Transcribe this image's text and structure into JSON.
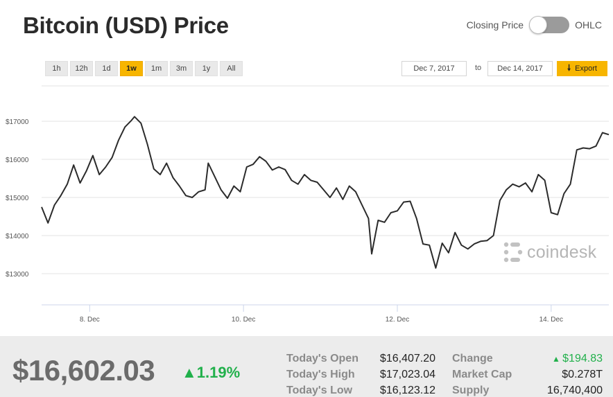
{
  "header": {
    "title": "Bitcoin (USD) Price",
    "toggle_left_label": "Closing Price",
    "toggle_right_label": "OHLC"
  },
  "ranges": [
    "1h",
    "12h",
    "1d",
    "1w",
    "1m",
    "3m",
    "1y",
    "All"
  ],
  "active_range": "1w",
  "dates": {
    "from": "Dec 7, 2017",
    "separator": "to",
    "to": "Dec 14, 2017"
  },
  "export_label": "Export",
  "watermark": "coindesk",
  "colors": {
    "accent": "#f7b500",
    "line": "#2b2b2b",
    "positive": "#21b04b"
  },
  "chart_data": {
    "type": "line",
    "ylim": [
      12000,
      18000
    ],
    "xlim": [
      "Dec 7, 2017 09:00",
      "Dec 14, 2017 18:00"
    ],
    "yticks": [
      13000,
      14000,
      15000,
      16000,
      17000
    ],
    "ytick_labels": [
      "$13000",
      "$14000",
      "$15000",
      "$16000",
      "$17000"
    ],
    "xtick_labels": [
      "8. Dec",
      "10. Dec",
      "12. Dec",
      "14. Dec"
    ],
    "grid": true,
    "series": [
      {
        "values": [
          [
            "Dec 7, 2017 09:00",
            14750
          ],
          [
            "Dec 7, 2017 11:00",
            14330
          ],
          [
            "Dec 7, 2017 13:00",
            14800
          ],
          [
            "Dec 7, 2017 15:00",
            15050
          ],
          [
            "Dec 7, 2017 17:00",
            15350
          ],
          [
            "Dec 7, 2017 19:00",
            15850
          ],
          [
            "Dec 7, 2017 21:00",
            15380
          ],
          [
            "Dec 7, 2017 23:00",
            15700
          ],
          [
            "Dec 8, 2017 01:00",
            16100
          ],
          [
            "Dec 8, 2017 03:00",
            15600
          ],
          [
            "Dec 8, 2017 05:00",
            15800
          ],
          [
            "Dec 8, 2017 07:00",
            16050
          ],
          [
            "Dec 8, 2017 09:00",
            16500
          ],
          [
            "Dec 8, 2017 11:00",
            16850
          ],
          [
            "Dec 8, 2017 13:00",
            17020
          ],
          [
            "Dec 8, 2017 14:00",
            17120
          ],
          [
            "Dec 8, 2017 16:00",
            16950
          ],
          [
            "Dec 8, 2017 18:00",
            16400
          ],
          [
            "Dec 8, 2017 20:00",
            15750
          ],
          [
            "Dec 8, 2017 22:00",
            15600
          ],
          [
            "Dec 9, 2017 00:00",
            15900
          ],
          [
            "Dec 9, 2017 02:00",
            15520
          ],
          [
            "Dec 9, 2017 04:00",
            15300
          ],
          [
            "Dec 9, 2017 06:00",
            15050
          ],
          [
            "Dec 9, 2017 08:00",
            15000
          ],
          [
            "Dec 9, 2017 10:00",
            15150
          ],
          [
            "Dec 9, 2017 12:00",
            15200
          ],
          [
            "Dec 9, 2017 13:00",
            15900
          ],
          [
            "Dec 9, 2017 15:00",
            15550
          ],
          [
            "Dec 9, 2017 17:00",
            15200
          ],
          [
            "Dec 9, 2017 19:00",
            14980
          ],
          [
            "Dec 9, 2017 21:00",
            15300
          ],
          [
            "Dec 9, 2017 23:00",
            15150
          ],
          [
            "Dec 10, 2017 01:00",
            15800
          ],
          [
            "Dec 10, 2017 03:00",
            15870
          ],
          [
            "Dec 10, 2017 05:00",
            16070
          ],
          [
            "Dec 10, 2017 07:00",
            15950
          ],
          [
            "Dec 10, 2017 09:00",
            15720
          ],
          [
            "Dec 10, 2017 11:00",
            15800
          ],
          [
            "Dec 10, 2017 13:00",
            15730
          ],
          [
            "Dec 10, 2017 15:00",
            15450
          ],
          [
            "Dec 10, 2017 17:00",
            15350
          ],
          [
            "Dec 10, 2017 19:00",
            15600
          ],
          [
            "Dec 10, 2017 21:00",
            15450
          ],
          [
            "Dec 10, 2017 23:00",
            15400
          ],
          [
            "Dec 11, 2017 01:00",
            15200
          ],
          [
            "Dec 11, 2017 03:00",
            15000
          ],
          [
            "Dec 11, 2017 05:00",
            15250
          ],
          [
            "Dec 11, 2017 07:00",
            14950
          ],
          [
            "Dec 11, 2017 09:00",
            15300
          ],
          [
            "Dec 11, 2017 11:00",
            15150
          ],
          [
            "Dec 11, 2017 13:00",
            14800
          ],
          [
            "Dec 11, 2017 15:00",
            14450
          ],
          [
            "Dec 11, 2017 16:00",
            13520
          ],
          [
            "Dec 11, 2017 18:00",
            14400
          ],
          [
            "Dec 11, 2017 20:00",
            14350
          ],
          [
            "Dec 11, 2017 22:00",
            14600
          ],
          [
            "Dec 12, 2017 00:00",
            14650
          ],
          [
            "Dec 12, 2017 02:00",
            14880
          ],
          [
            "Dec 12, 2017 04:00",
            14900
          ],
          [
            "Dec 12, 2017 06:00",
            14450
          ],
          [
            "Dec 12, 2017 08:00",
            13780
          ],
          [
            "Dec 12, 2017 10:00",
            13750
          ],
          [
            "Dec 12, 2017 12:00",
            13150
          ],
          [
            "Dec 12, 2017 14:00",
            13800
          ],
          [
            "Dec 12, 2017 16:00",
            13550
          ],
          [
            "Dec 12, 2017 18:00",
            14080
          ],
          [
            "Dec 12, 2017 20:00",
            13750
          ],
          [
            "Dec 12, 2017 22:00",
            13650
          ],
          [
            "Dec 13, 2017 00:00",
            13780
          ],
          [
            "Dec 13, 2017 02:00",
            13850
          ],
          [
            "Dec 13, 2017 04:00",
            13870
          ],
          [
            "Dec 13, 2017 06:00",
            14000
          ],
          [
            "Dec 13, 2017 08:00",
            14920
          ],
          [
            "Dec 13, 2017 10:00",
            15200
          ],
          [
            "Dec 13, 2017 12:00",
            15350
          ],
          [
            "Dec 13, 2017 14:00",
            15280
          ],
          [
            "Dec 13, 2017 16:00",
            15380
          ],
          [
            "Dec 13, 2017 18:00",
            15150
          ],
          [
            "Dec 13, 2017 20:00",
            15600
          ],
          [
            "Dec 13, 2017 22:00",
            15450
          ],
          [
            "Dec 14, 2017 00:00",
            14600
          ],
          [
            "Dec 14, 2017 02:00",
            14550
          ],
          [
            "Dec 14, 2017 04:00",
            15100
          ]
        ],
        "values_continued": [
          [
            "Dec 14, 2017 06:00",
            15350
          ],
          [
            "Dec 14, 2017 08:00",
            16250
          ],
          [
            "Dec 14, 2017 10:00",
            16300
          ],
          [
            "Dec 14, 2017 12:00",
            16280
          ],
          [
            "Dec 14, 2017 14:00",
            16350
          ],
          [
            "Dec 14, 2017 16:00",
            16700
          ],
          [
            "Dec 14, 2017 18:00",
            16650
          ]
        ]
      }
    ]
  },
  "stats": {
    "price": "$16,602.03",
    "pct_change": "1.19%",
    "labels": {
      "open": "Today's Open",
      "high": "Today's High",
      "low": "Today's Low",
      "change": "Change",
      "market_cap": "Market Cap",
      "supply": "Supply"
    },
    "values": {
      "open": "$16,407.20",
      "high": "$17,023.04",
      "low": "$16,123.12",
      "change": "$194.83",
      "market_cap": "$0.278T",
      "supply": "16,740,400"
    }
  }
}
